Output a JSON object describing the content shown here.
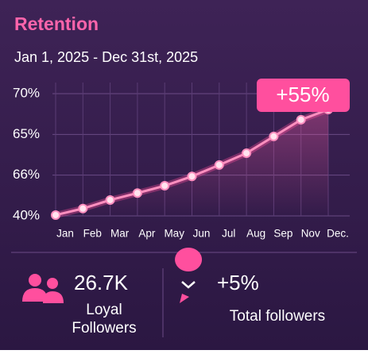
{
  "header": {
    "title": "Retention",
    "subtitle": "Jan 1, 2025 - Dec 31st, 2025"
  },
  "chart_data": {
    "type": "line",
    "categories": [
      "Jan",
      "Feb",
      "Mar",
      "Apr",
      "May",
      "Jun",
      "Jul",
      "Aug",
      "Sep",
      "Nov",
      "Dec."
    ],
    "values": [
      40.2,
      41.8,
      43.9,
      45.6,
      47.4,
      49.7,
      52.5,
      55.4,
      59.5,
      63.6,
      66.1
    ],
    "color": "#ff8fbf",
    "ylim": [
      40,
      70
    ],
    "y_axis_labels": [
      "70%",
      "65%",
      "66%",
      "40%"
    ],
    "badge": "+55%",
    "grid": true
  },
  "stats": [
    {
      "value": "26.7K",
      "label_lines": [
        "Loyal",
        "Followers"
      ]
    },
    {
      "value": "+5%",
      "label_lines": [
        "Total followers"
      ]
    }
  ]
}
